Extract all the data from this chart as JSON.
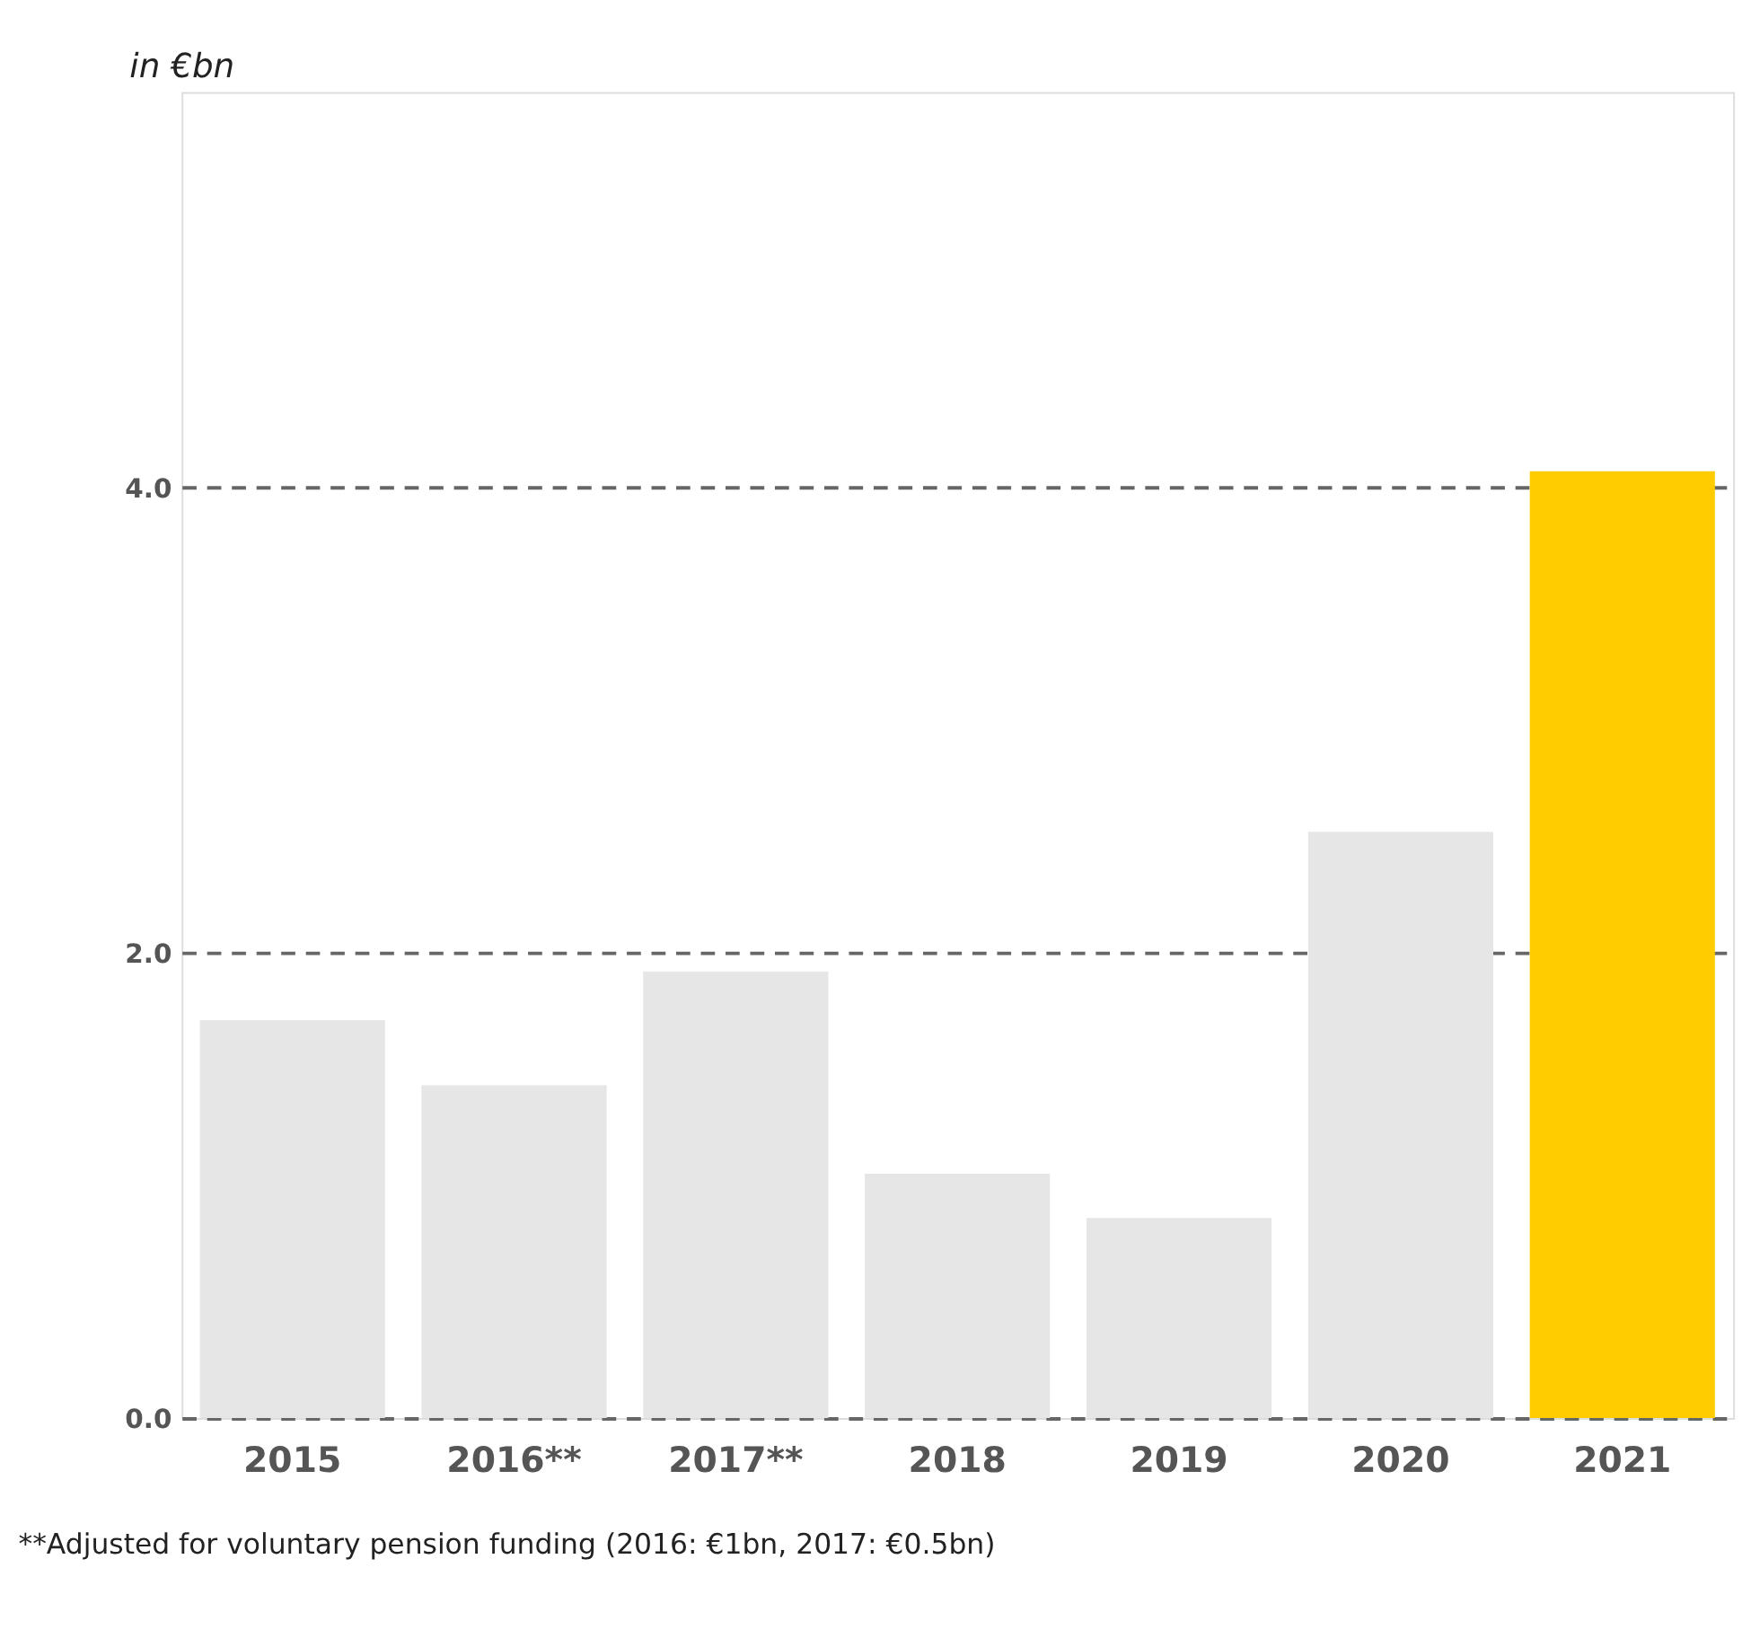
{
  "chart_data": {
    "type": "bar",
    "ylabel": "in €bn",
    "categories": [
      "2015",
      "2016**",
      "2017**",
      "2018",
      "2019",
      "2020",
      "2021"
    ],
    "values": [
      1.71,
      1.43,
      1.92,
      1.05,
      0.86,
      2.52,
      4.07
    ],
    "colors": [
      "#e6e6e6",
      "#e6e6e6",
      "#e6e6e6",
      "#e6e6e6",
      "#e6e6e6",
      "#e6e6e6",
      "#ffcc00"
    ],
    "ylim": [
      0,
      5.7
    ],
    "yticks": [
      {
        "value": 0,
        "label": "0.0"
      },
      {
        "value": 2,
        "label": "2.0"
      },
      {
        "value": 4,
        "label": "4.0"
      }
    ],
    "grid": "y",
    "annotations": [
      "**Adjusted for voluntary pension funding (2016: €1bn, 2017: €0.5bn)"
    ]
  }
}
